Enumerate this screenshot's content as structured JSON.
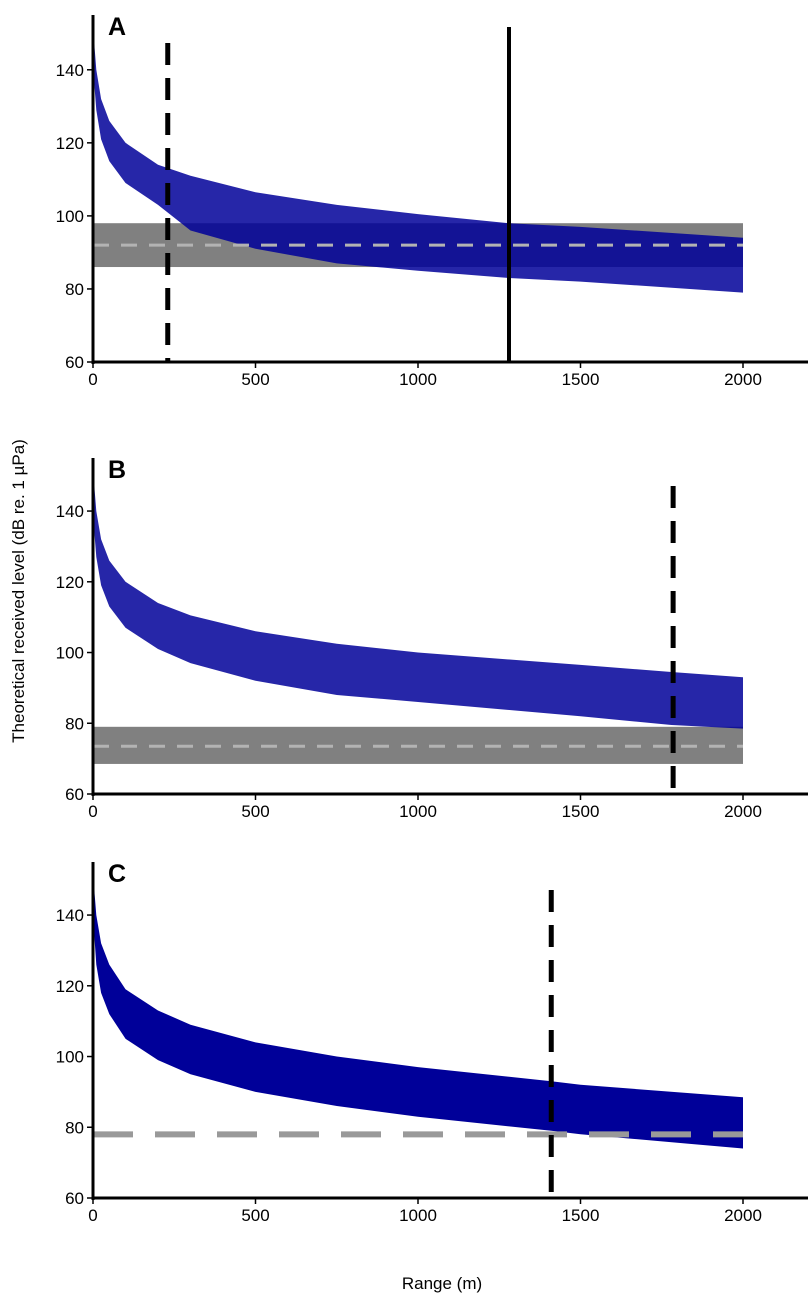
{
  "figure": {
    "ylabel": "Theoretical received level (dB re. 1 µPa)",
    "xlabel": "Range (m)"
  },
  "chart_data": [
    {
      "type": "area",
      "panel_label": "A",
      "xlim": [
        0,
        2200
      ],
      "ylim": [
        60,
        155
      ],
      "x_ticks": [
        0,
        500,
        1000,
        1500,
        2000
      ],
      "y_ticks": [
        60,
        80,
        100,
        120,
        140
      ],
      "grid": false,
      "band": {
        "color": "#000099",
        "x": [
          1,
          5,
          10,
          25,
          50,
          100,
          200,
          300,
          500,
          750,
          1000,
          1280,
          1500,
          2000
        ],
        "upper": [
          160,
          146,
          140,
          132,
          126,
          120,
          114,
          111,
          106.5,
          103,
          100.5,
          98,
          97,
          94
        ],
        "lower": [
          149,
          135,
          129,
          121,
          115,
          109,
          103,
          96,
          91,
          87,
          85,
          83,
          82,
          79
        ]
      },
      "noise": {
        "color": "#808080",
        "center": 92,
        "lower": 86,
        "upper": 98,
        "x_range": [
          0,
          2000
        ]
      },
      "vlines": [
        {
          "x": 230,
          "style": "dashed"
        },
        {
          "x": 1280,
          "style": "solid"
        }
      ]
    },
    {
      "type": "area",
      "panel_label": "B",
      "xlim": [
        0,
        2200
      ],
      "ylim": [
        60,
        155
      ],
      "x_ticks": [
        0,
        500,
        1000,
        1500,
        2000
      ],
      "y_ticks": [
        60,
        80,
        100,
        120,
        140
      ],
      "grid": false,
      "band": {
        "color": "#000099",
        "x": [
          1,
          5,
          10,
          25,
          50,
          100,
          200,
          300,
          500,
          750,
          1000,
          1500,
          1780,
          2000
        ],
        "upper": [
          160,
          146,
          140,
          132,
          126,
          120,
          114,
          110.5,
          106,
          102.5,
          100,
          96.5,
          94.5,
          93
        ],
        "lower": [
          147,
          133,
          127,
          119,
          113,
          107,
          101,
          97,
          92,
          88,
          86,
          82,
          79.5,
          78.5
        ]
      },
      "noise": {
        "color": "#808080",
        "center": 73.5,
        "lower": 68.5,
        "upper": 79,
        "x_range": [
          0,
          2000
        ]
      },
      "vlines": [
        {
          "x": 1785,
          "style": "dashed"
        }
      ]
    },
    {
      "type": "area",
      "panel_label": "C",
      "xlim": [
        0,
        2200
      ],
      "ylim": [
        60,
        155
      ],
      "x_ticks": [
        0,
        500,
        1000,
        1500,
        2000
      ],
      "y_ticks": [
        60,
        80,
        100,
        120,
        140
      ],
      "grid": false,
      "band": {
        "color": "#000099",
        "x": [
          1,
          5,
          10,
          25,
          50,
          100,
          200,
          300,
          500,
          750,
          1000,
          1410,
          1500,
          2000
        ],
        "upper": [
          160,
          146,
          140,
          132,
          126,
          119,
          113,
          109,
          104,
          100,
          97,
          93,
          92,
          88.5
        ],
        "lower": [
          147,
          133,
          126,
          118,
          112,
          105,
          99,
          95,
          90,
          86,
          83,
          79,
          78,
          74
        ]
      },
      "noise": {
        "color": "#999999",
        "center": 78,
        "x_range": [
          0,
          2000
        ]
      },
      "vlines": [
        {
          "x": 1410,
          "style": "dashed"
        }
      ]
    }
  ]
}
